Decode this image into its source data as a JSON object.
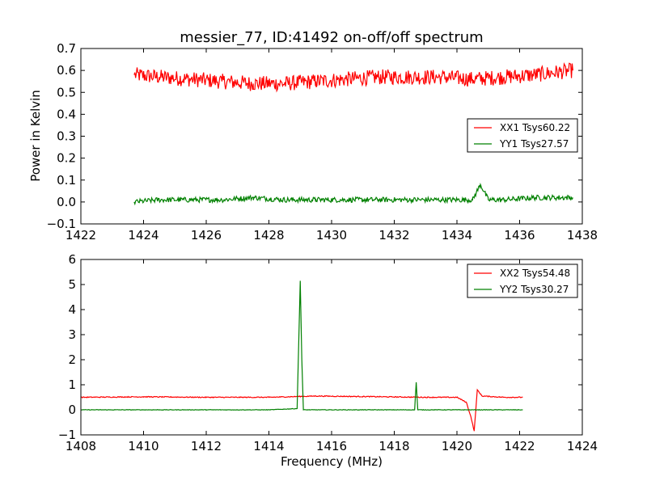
{
  "chart_data": [
    {
      "type": "line",
      "title": "messier_77, ID:41492 on-off/off spectrum",
      "xlabel": "",
      "ylabel": "Power in Kelvin",
      "xlim": [
        1422,
        1438
      ],
      "ylim": [
        -0.1,
        0.7
      ],
      "xticks": [
        "1422",
        "1424",
        "1426",
        "1428",
        "1430",
        "1432",
        "1434",
        "1436",
        "1438"
      ],
      "yticks": [
        "−0.1",
        "0.0",
        "0.1",
        "0.2",
        "0.3",
        "0.4",
        "0.5",
        "0.6",
        "0.7"
      ],
      "grid": false,
      "legend_position": "right",
      "series": [
        {
          "name": "XX1 Tsys60.22",
          "color": "#ff0000",
          "x": [
            1423.7,
            1424.5,
            1425.5,
            1426.5,
            1427.5,
            1428.5,
            1429.5,
            1430.5,
            1431.5,
            1432.5,
            1433.5,
            1434.5,
            1435.5,
            1436.5,
            1437.7
          ],
          "y": [
            0.58,
            0.57,
            0.56,
            0.55,
            0.54,
            0.54,
            0.55,
            0.56,
            0.57,
            0.57,
            0.57,
            0.56,
            0.57,
            0.58,
            0.6
          ]
        },
        {
          "name": "YY1 Tsys27.57",
          "color": "#008000",
          "x": [
            1423.7,
            1424.5,
            1425.5,
            1426.5,
            1427.5,
            1428.5,
            1429.5,
            1430.5,
            1431.5,
            1432.5,
            1433.5,
            1434.5,
            1434.75,
            1435.0,
            1435.5,
            1436.5,
            1437.7
          ],
          "y": [
            0.0,
            0.01,
            0.01,
            0.01,
            0.02,
            0.01,
            0.01,
            0.01,
            0.01,
            0.01,
            0.01,
            0.01,
            0.08,
            0.01,
            0.01,
            0.02,
            0.02
          ]
        }
      ]
    },
    {
      "type": "line",
      "title": "",
      "xlabel": "Frequency (MHz)",
      "ylabel": "",
      "xlim": [
        1408,
        1424
      ],
      "ylim": [
        -1,
        6
      ],
      "xticks": [
        "1408",
        "1410",
        "1412",
        "1414",
        "1416",
        "1418",
        "1420",
        "1422",
        "1424"
      ],
      "yticks": [
        "−1",
        "0",
        "1",
        "2",
        "3",
        "4",
        "5",
        "6"
      ],
      "grid": false,
      "legend_position": "top-right",
      "series": [
        {
          "name": "XX2 Tsys54.48",
          "color": "#ff0000",
          "x": [
            1408.0,
            1410.0,
            1412.0,
            1414.0,
            1415.5,
            1417.0,
            1419.0,
            1420.0,
            1420.3,
            1420.45,
            1420.55,
            1420.65,
            1420.8,
            1421.5,
            1422.1
          ],
          "y": [
            0.5,
            0.52,
            0.5,
            0.5,
            0.55,
            0.53,
            0.5,
            0.5,
            0.3,
            -0.3,
            -0.85,
            0.8,
            0.55,
            0.5,
            0.5
          ]
        },
        {
          "name": "YY2 Tsys30.27",
          "color": "#008000",
          "x": [
            1408.0,
            1410.0,
            1412.0,
            1414.0,
            1414.9,
            1415.0,
            1415.05,
            1415.1,
            1415.2,
            1417.0,
            1418.65,
            1418.7,
            1418.75,
            1420.0,
            1422.1
          ],
          "y": [
            0.0,
            0.0,
            0.0,
            0.0,
            0.05,
            5.15,
            2.0,
            0.0,
            0.0,
            0.0,
            0.0,
            1.1,
            0.0,
            0.0,
            0.0
          ]
        }
      ]
    }
  ]
}
